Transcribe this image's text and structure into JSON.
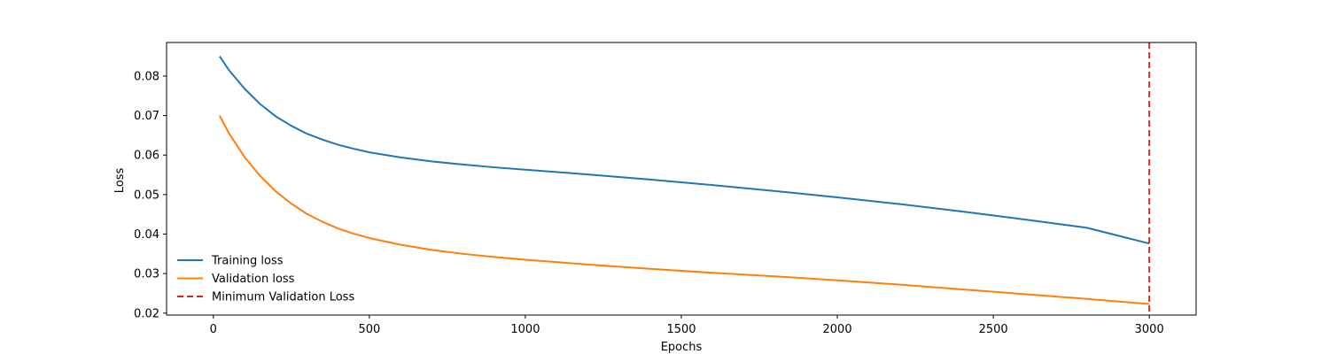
{
  "chart_data": {
    "type": "line",
    "title": "",
    "xlabel": "Epochs",
    "ylabel": "Loss",
    "xlim": [
      -150,
      3150
    ],
    "ylim": [
      0.0195,
      0.0885
    ],
    "xticks": [
      0,
      500,
      1000,
      1500,
      2000,
      2500,
      3000
    ],
    "yticks": [
      0.02,
      0.03,
      0.04,
      0.05,
      0.06,
      0.07,
      0.08
    ],
    "xtick_labels": [
      "0",
      "500",
      "1000",
      "1500",
      "2000",
      "2500",
      "3000"
    ],
    "ytick_labels": [
      "0.02",
      "0.03",
      "0.04",
      "0.05",
      "0.06",
      "0.07",
      "0.08"
    ],
    "grid": false,
    "legend_position": "lower-left",
    "series": [
      {
        "name": "Training loss",
        "color": "#1f77b4",
        "style": "solid",
        "x": [
          20,
          50,
          100,
          150,
          200,
          250,
          300,
          350,
          400,
          450,
          500,
          600,
          700,
          800,
          900,
          1000,
          1200,
          1400,
          1600,
          1800,
          2000,
          2200,
          2400,
          2600,
          2800,
          3000
        ],
        "y": [
          0.085,
          0.0815,
          0.0768,
          0.0729,
          0.0698,
          0.0674,
          0.0654,
          0.0639,
          0.0626,
          0.0616,
          0.0607,
          0.0594,
          0.0584,
          0.0576,
          0.0569,
          0.0563,
          0.0551,
          0.0538,
          0.0524,
          0.0509,
          0.0493,
          0.0476,
          0.0457,
          0.0437,
          0.0416,
          0.0376
        ]
      },
      {
        "name": "Validation loss",
        "color": "#ff7f0e",
        "style": "solid",
        "x": [
          20,
          50,
          100,
          150,
          200,
          250,
          300,
          350,
          400,
          450,
          500,
          600,
          700,
          800,
          900,
          1000,
          1200,
          1400,
          1600,
          1800,
          2000,
          2200,
          2400,
          2600,
          2800,
          3000
        ],
        "y": [
          0.07,
          0.0655,
          0.0595,
          0.0547,
          0.0508,
          0.0477,
          0.0451,
          0.0431,
          0.0414,
          0.0401,
          0.039,
          0.0373,
          0.036,
          0.035,
          0.0342,
          0.0335,
          0.0323,
          0.0312,
          0.0302,
          0.0293,
          0.0283,
          0.0272,
          0.026,
          0.0248,
          0.0236,
          0.0223
        ]
      },
      {
        "name": "Minimum Validation Loss",
        "color": "#d62728",
        "style": "dashed",
        "type": "vline",
        "x_value": 3000
      }
    ]
  }
}
